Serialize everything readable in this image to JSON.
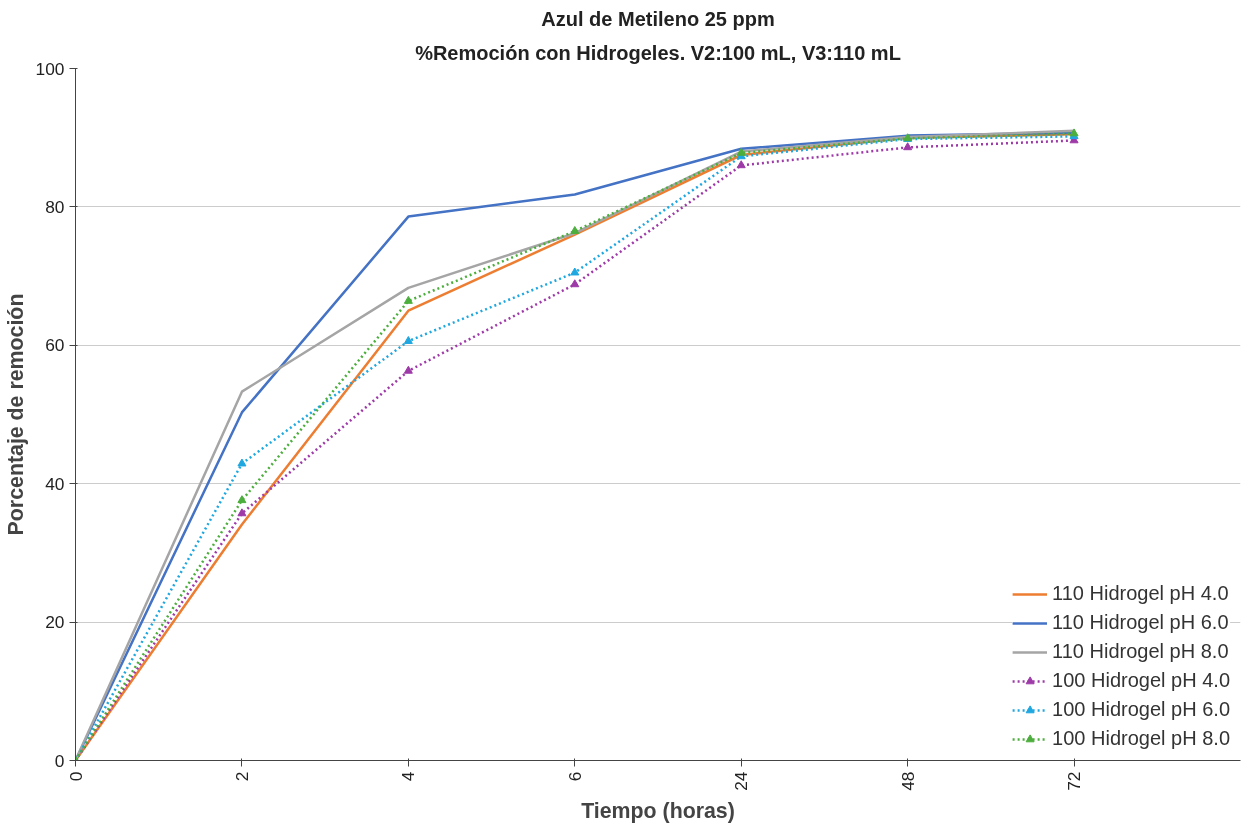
{
  "chart_data": {
    "type": "line",
    "title": "Azul de Metileno 25 ppm",
    "subtitle": "%Remoción con Hidrogeles. V2:100 mL, V3:110 mL",
    "xlabel": "Tiempo (horas)",
    "ylabel": "Porcentaje de remoción",
    "categories": [
      "0",
      "2",
      "4",
      "6",
      "24",
      "48",
      "72"
    ],
    "ylim": [
      0,
      100
    ],
    "yticks": [
      0,
      20,
      40,
      60,
      80,
      100
    ],
    "grid": "y",
    "legend": "bottom right",
    "series": [
      {
        "name": "110 Hidrogel pH 4.0",
        "color": "#ed7d31",
        "marker": "none",
        "line_style": "solid",
        "values": [
          0,
          34.1,
          65,
          76,
          87.5,
          90,
          90.5
        ]
      },
      {
        "name": "110 Hidrogel pH 6.0",
        "color": "#4472c4",
        "marker": "none",
        "line_style": "solid",
        "values": [
          0,
          50.3,
          78.6,
          81.8,
          88.4,
          90.3,
          90.7
        ]
      },
      {
        "name": "110 Hidrogel pH 8.0",
        "color": "#a5a5a5",
        "marker": "none",
        "line_style": "solid",
        "values": [
          0,
          53.3,
          68.3,
          76.2,
          88,
          90.1,
          91
        ]
      },
      {
        "name": "100 Hidrogel pH 4.0",
        "color": "#9e3aa8",
        "marker": "triangle",
        "line_style": "dotted",
        "values": [
          0,
          35.7,
          56.3,
          68.8,
          86,
          88.6,
          89.6
        ]
      },
      {
        "name": "100 Hidrogel pH 6.0",
        "color": "#1fa7e0",
        "marker": "triangle",
        "line_style": "dotted",
        "values": [
          0,
          42.9,
          60.6,
          70.5,
          87.3,
          89.8,
          90.2
        ]
      },
      {
        "name": "100 Hidrogel pH 8.0",
        "color": "#4cae3c",
        "marker": "triangle",
        "line_style": "dotted",
        "values": [
          0,
          37.6,
          66.4,
          76.5,
          87.8,
          89.9,
          90.6
        ]
      }
    ]
  }
}
